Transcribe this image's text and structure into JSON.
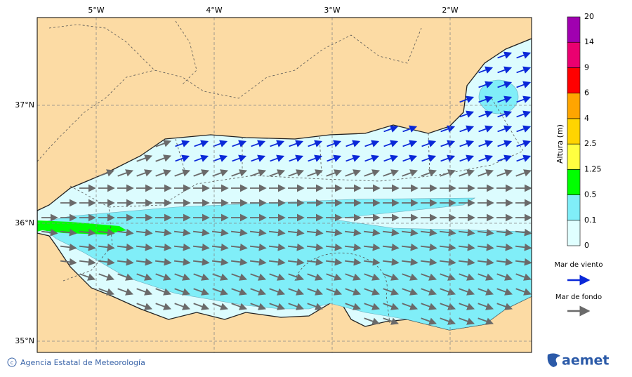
{
  "map": {
    "lon_labels": [
      "5°W",
      "4°W",
      "3°W",
      "2°W"
    ],
    "lat_labels": [
      "37°N",
      "36°N",
      "35°N"
    ],
    "colorbar": {
      "title": "Altura (m)",
      "levels": [
        0,
        0.1,
        0.5,
        1.25,
        2.5,
        4,
        6,
        9,
        14,
        20
      ],
      "colors": [
        "#e0ffff",
        "#80eef8",
        "#00ff00",
        "#ffff40",
        "#ffd400",
        "#ffa500",
        "#ff0000",
        "#ea0070",
        "#a000b0"
      ]
    },
    "legend": {
      "wind_sea": "Mar de viento",
      "swell": "Mar de fondo"
    },
    "footer": {
      "credit": "Agencia Estatal de Meteorología",
      "logo": "aemet"
    }
  }
}
